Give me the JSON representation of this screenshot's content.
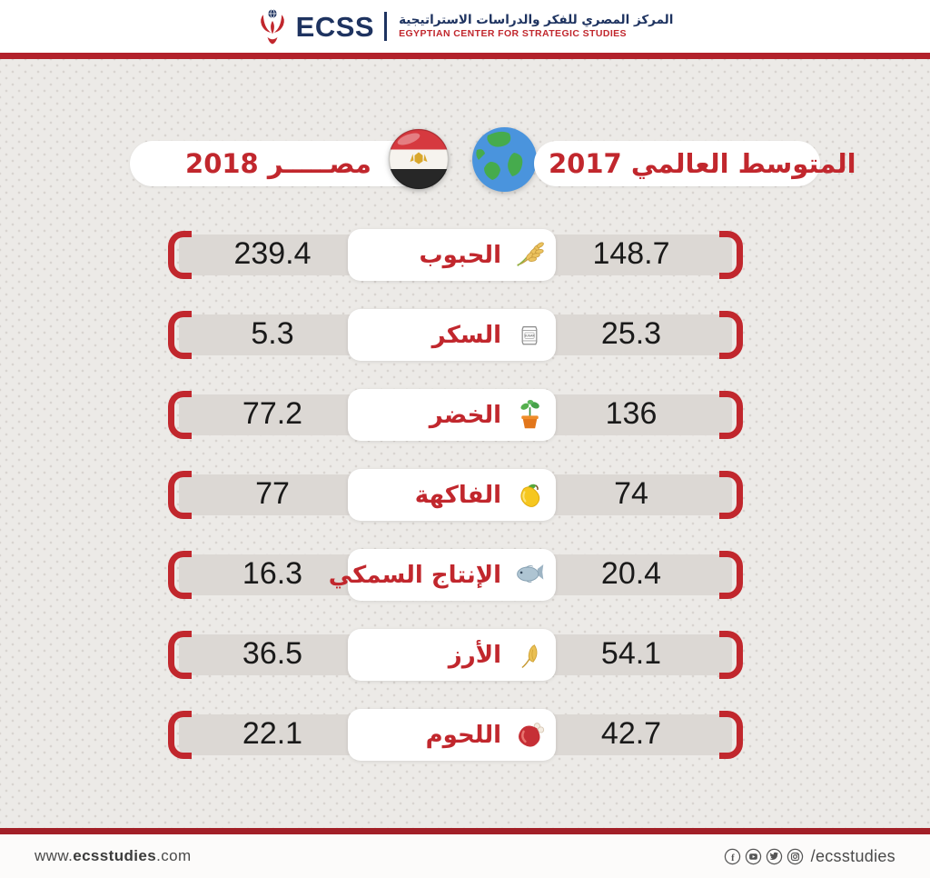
{
  "header": {
    "logo_text": "ECSS",
    "org_name_ar": "المركز المصري للفكر والدراسات الاستراتيجية",
    "org_name_en": "EGYPTIAN CENTER FOR STRATEGIC STUDIES"
  },
  "legend": {
    "world_label": "المتوسط العالمي 2017",
    "egypt_label": "مصـــــر 2018",
    "world_icon": "globe-icon",
    "egypt_icon": "egypt-flag-icon"
  },
  "rows": [
    {
      "label": "الحبوب",
      "icon": "wheat-icon",
      "world": "148.7",
      "egypt": "239.4"
    },
    {
      "label": "السكر",
      "icon": "sugar-bag-icon",
      "world": "25.3",
      "egypt": "5.3"
    },
    {
      "label": "الخضر",
      "icon": "potted-plant-icon",
      "world": "136",
      "egypt": "77.2"
    },
    {
      "label": "الفاكهة",
      "icon": "mango-icon",
      "world": "74",
      "egypt": "77"
    },
    {
      "label": "الإنتاج السمكي",
      "icon": "fish-icon",
      "world": "20.4",
      "egypt": "16.3"
    },
    {
      "label": "الأرز",
      "icon": "rice-stalk-icon",
      "world": "54.1",
      "egypt": "36.5"
    },
    {
      "label": "اللحوم",
      "icon": "meat-icon",
      "world": "42.7",
      "egypt": "22.1"
    }
  ],
  "chart_data": {
    "type": "table",
    "title": "المتوسط العالمي 2017 / مصر 2018",
    "categories": [
      "الحبوب",
      "السكر",
      "الخضر",
      "الفاكهة",
      "الإنتاج السمكي",
      "الأرز",
      "اللحوم"
    ],
    "series": [
      {
        "name": "المتوسط العالمي 2017",
        "values": [
          148.7,
          25.3,
          136,
          74,
          20.4,
          54.1,
          42.7
        ]
      },
      {
        "name": "مصر 2018",
        "values": [
          239.4,
          5.3,
          77.2,
          77,
          16.3,
          36.5,
          22.1
        ]
      }
    ],
    "legend_position": "top"
  },
  "footer": {
    "website_prefix": "www.",
    "website_bold": "ecsstudies",
    "website_suffix": ".com",
    "social_handle": "/ecsstudies",
    "social_icons": [
      "facebook-icon",
      "youtube-icon",
      "twitter-icon",
      "instagram-icon"
    ]
  },
  "colors": {
    "accent_red": "#c1272d",
    "rule_top": "#b2212b",
    "rule_bottom": "#a21f27",
    "navy": "#1e3360",
    "bar_gray": "#dcd8d4",
    "background": "#eceae7",
    "value_text": "#1a1a1a"
  }
}
